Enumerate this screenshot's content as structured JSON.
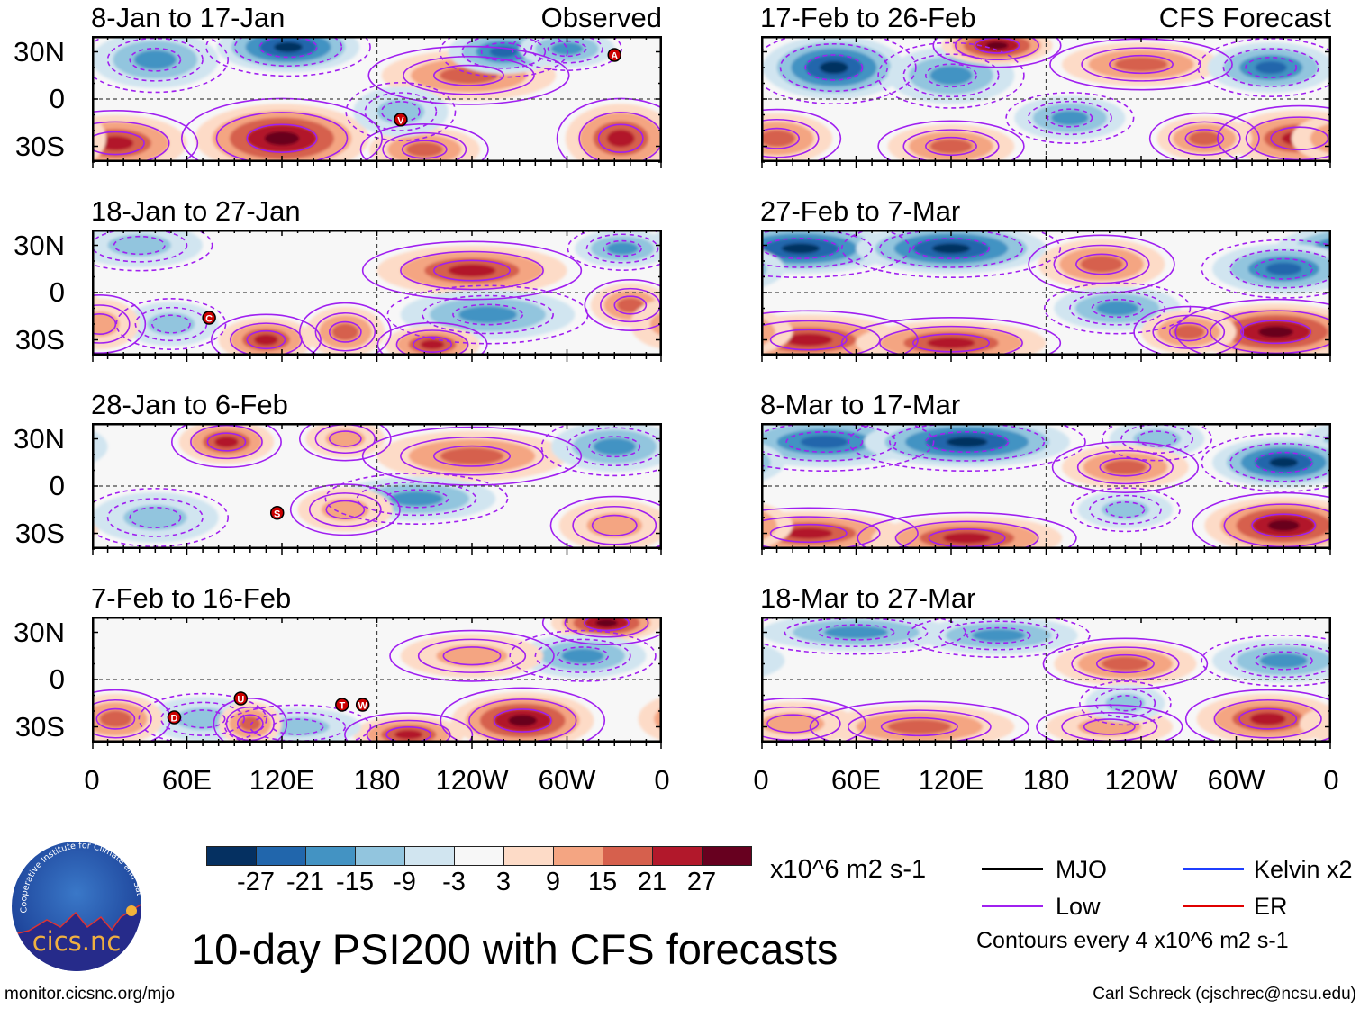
{
  "figure_title": "10-day PSI200 with CFS forecasts",
  "column_labels": {
    "left": "Observed",
    "right": "CFS Forecast"
  },
  "lat_labels": [
    "30N",
    "0",
    "30S"
  ],
  "lon_labels": [
    "0",
    "60E",
    "120E",
    "180",
    "120W",
    "60W",
    "0"
  ],
  "colorbar": {
    "ticks": [
      "-27",
      "-21",
      "-15",
      "-9",
      "-3",
      "3",
      "9",
      "15",
      "21",
      "27"
    ],
    "colors": [
      "#053061",
      "#2166ac",
      "#4393c3",
      "#92c5de",
      "#d1e5f0",
      "#f7f7f7",
      "#fddbc7",
      "#f4a582",
      "#d6604d",
      "#b2182b",
      "#67001f"
    ],
    "units": "x10^6 m2 s-1"
  },
  "legend": {
    "items": [
      {
        "label": "MJO",
        "color": "#000000"
      },
      {
        "label": "Kelvin x2",
        "color": "#1f3fff"
      },
      {
        "label": "Low",
        "color": "#a020f0"
      },
      {
        "label": "ER",
        "color": "#e00000"
      }
    ],
    "note": "Contours every 4 x10^6 m2 s-1"
  },
  "footer": {
    "left": "monitor.cicsnc.org/mjo",
    "right": "Carl Schreck (cjschrec@ncsu.edu)"
  },
  "logo": {
    "ring_text": "Cooperative Institute for Climate and Satellites",
    "name": "cics.nc"
  },
  "chart_data": {
    "type": "heatmap",
    "variable": "PSI200 anomaly",
    "units": "x10^6 m2 s-1",
    "lon_range": [
      0,
      360
    ],
    "lat_range": [
      -40,
      40
    ],
    "panels": [
      {
        "title": "8-Jan to 17-Jan",
        "column": "left",
        "anomalies": [
          {
            "lon": 124,
            "lat": 33,
            "value": -27,
            "w": 45,
            "h": 16
          },
          {
            "lon": 40,
            "lat": 25,
            "value": -15,
            "w": 40,
            "h": 18
          },
          {
            "lon": 120,
            "lat": -25,
            "value": 27,
            "w": 55,
            "h": 22
          },
          {
            "lon": 15,
            "lat": -28,
            "value": 21,
            "w": 45,
            "h": 18
          },
          {
            "lon": 238,
            "lat": 15,
            "value": 15,
            "w": 55,
            "h": 16
          },
          {
            "lon": 334,
            "lat": -25,
            "value": 21,
            "w": 35,
            "h": 22
          },
          {
            "lon": 260,
            "lat": 30,
            "value": -21,
            "w": 35,
            "h": 14
          },
          {
            "lon": 300,
            "lat": 32,
            "value": -15,
            "w": 30,
            "h": 12
          },
          {
            "lon": 210,
            "lat": -32,
            "value": 15,
            "w": 35,
            "h": 14
          },
          {
            "lon": 195,
            "lat": -8,
            "value": -9,
            "w": 30,
            "h": 16
          }
        ],
        "storms": [
          {
            "letter": "V",
            "lon": 195,
            "lat": -13
          },
          {
            "letter": "A",
            "lon": 330,
            "lat": 28
          }
        ]
      },
      {
        "title": "18-Jan to 27-Jan",
        "column": "left",
        "anomalies": [
          {
            "lon": 240,
            "lat": 14,
            "value": 21,
            "w": 60,
            "h": 16
          },
          {
            "lon": 250,
            "lat": -14,
            "value": -15,
            "w": 55,
            "h": 16
          },
          {
            "lon": 30,
            "lat": 30,
            "value": -9,
            "w": 40,
            "h": 14
          },
          {
            "lon": 110,
            "lat": -30,
            "value": 21,
            "w": 30,
            "h": 14
          },
          {
            "lon": 160,
            "lat": -25,
            "value": 15,
            "w": 25,
            "h": 16
          },
          {
            "lon": 215,
            "lat": -33,
            "value": 21,
            "w": 30,
            "h": 12
          },
          {
            "lon": 340,
            "lat": -8,
            "value": 15,
            "w": 25,
            "h": 14
          },
          {
            "lon": 50,
            "lat": -20,
            "value": -9,
            "w": 30,
            "h": 14
          },
          {
            "lon": 335,
            "lat": 28,
            "value": -15,
            "w": 30,
            "h": 12
          },
          {
            "lon": 5,
            "lat": -20,
            "value": 9,
            "w": 25,
            "h": 16
          }
        ],
        "storms": [
          {
            "letter": "C",
            "lon": 74,
            "lat": -16
          }
        ]
      },
      {
        "title": "28-Jan to 6-Feb",
        "column": "left",
        "anomalies": [
          {
            "lon": 85,
            "lat": 28,
            "value": 21,
            "w": 30,
            "h": 14
          },
          {
            "lon": 240,
            "lat": 19,
            "value": 15,
            "w": 60,
            "h": 16
          },
          {
            "lon": 205,
            "lat": -8,
            "value": -15,
            "w": 50,
            "h": 14
          },
          {
            "lon": 330,
            "lat": 25,
            "value": -15,
            "w": 40,
            "h": 16
          },
          {
            "lon": 330,
            "lat": -25,
            "value": 9,
            "w": 35,
            "h": 16
          },
          {
            "lon": 160,
            "lat": -15,
            "value": 9,
            "w": 30,
            "h": 14
          },
          {
            "lon": 40,
            "lat": -20,
            "value": -9,
            "w": 40,
            "h": 16
          },
          {
            "lon": 160,
            "lat": 30,
            "value": 9,
            "w": 25,
            "h": 12
          }
        ],
        "storms": [
          {
            "letter": "S",
            "lon": 117,
            "lat": -17
          }
        ]
      },
      {
        "title": "7-Feb to 16-Feb",
        "column": "left",
        "anomalies": [
          {
            "lon": 325,
            "lat": 36,
            "value": 27,
            "w": 35,
            "h": 12
          },
          {
            "lon": 310,
            "lat": 15,
            "value": -15,
            "w": 40,
            "h": 14
          },
          {
            "lon": 240,
            "lat": 15,
            "value": 9,
            "w": 45,
            "h": 14
          },
          {
            "lon": 272,
            "lat": -26,
            "value": 27,
            "w": 45,
            "h": 18
          },
          {
            "lon": 200,
            "lat": -35,
            "value": 21,
            "w": 35,
            "h": 12
          },
          {
            "lon": 70,
            "lat": -25,
            "value": -9,
            "w": 35,
            "h": 14
          },
          {
            "lon": 130,
            "lat": -30,
            "value": -9,
            "w": 40,
            "h": 12
          },
          {
            "lon": 15,
            "lat": -25,
            "value": 15,
            "w": 30,
            "h": 16
          },
          {
            "lon": 100,
            "lat": -28,
            "value": 15,
            "w": 20,
            "h": 14
          }
        ],
        "storms": [
          {
            "letter": "D",
            "lon": 52,
            "lat": -24
          },
          {
            "letter": "U",
            "lon": 94,
            "lat": -12
          },
          {
            "letter": "T",
            "lon": 158,
            "lat": -16
          },
          {
            "letter": "W",
            "lon": 171,
            "lat": -16
          }
        ]
      },
      {
        "title": "17-Feb to 26-Feb",
        "column": "right",
        "anomalies": [
          {
            "lon": 46,
            "lat": 20,
            "value": -27,
            "w": 45,
            "h": 20
          },
          {
            "lon": 120,
            "lat": 15,
            "value": -15,
            "w": 40,
            "h": 18
          },
          {
            "lon": 149,
            "lat": 34,
            "value": 27,
            "w": 35,
            "h": 12
          },
          {
            "lon": 240,
            "lat": 22,
            "value": 15,
            "w": 50,
            "h": 14
          },
          {
            "lon": 322,
            "lat": 20,
            "value": -21,
            "w": 40,
            "h": 16
          },
          {
            "lon": 195,
            "lat": -12,
            "value": -15,
            "w": 35,
            "h": 14
          },
          {
            "lon": 340,
            "lat": -25,
            "value": 21,
            "w": 45,
            "h": 18
          },
          {
            "lon": 10,
            "lat": -25,
            "value": 15,
            "w": 35,
            "h": 16
          },
          {
            "lon": 120,
            "lat": -30,
            "value": 15,
            "w": 40,
            "h": 14
          },
          {
            "lon": 280,
            "lat": -25,
            "value": 15,
            "w": 30,
            "h": 14
          }
        ],
        "storms": []
      },
      {
        "title": "27-Feb to 7-Mar",
        "column": "right",
        "anomalies": [
          {
            "lon": 25,
            "lat": 28,
            "value": -27,
            "w": 60,
            "h": 16
          },
          {
            "lon": 120,
            "lat": 28,
            "value": -27,
            "w": 60,
            "h": 16
          },
          {
            "lon": 330,
            "lat": 15,
            "value": -21,
            "w": 45,
            "h": 16
          },
          {
            "lon": 215,
            "lat": 18,
            "value": 15,
            "w": 40,
            "h": 16
          },
          {
            "lon": 225,
            "lat": -10,
            "value": -15,
            "w": 40,
            "h": 14
          },
          {
            "lon": 30,
            "lat": -30,
            "value": 21,
            "w": 60,
            "h": 16
          },
          {
            "lon": 120,
            "lat": -32,
            "value": 21,
            "w": 60,
            "h": 14
          },
          {
            "lon": 325,
            "lat": -25,
            "value": 27,
            "w": 55,
            "h": 18
          },
          {
            "lon": 270,
            "lat": -25,
            "value": 15,
            "w": 30,
            "h": 14
          }
        ],
        "storms": []
      },
      {
        "title": "8-Mar to 17-Mar",
        "column": "right",
        "anomalies": [
          {
            "lon": 40,
            "lat": 28,
            "value": -21,
            "w": 60,
            "h": 16
          },
          {
            "lon": 130,
            "lat": 28,
            "value": -27,
            "w": 65,
            "h": 16
          },
          {
            "lon": 330,
            "lat": 15,
            "value": -27,
            "w": 45,
            "h": 16
          },
          {
            "lon": 250,
            "lat": 30,
            "value": -9,
            "w": 30,
            "h": 12
          },
          {
            "lon": 230,
            "lat": 12,
            "value": 15,
            "w": 40,
            "h": 14
          },
          {
            "lon": 30,
            "lat": -30,
            "value": 21,
            "w": 60,
            "h": 14
          },
          {
            "lon": 130,
            "lat": -33,
            "value": 21,
            "w": 60,
            "h": 14
          },
          {
            "lon": 330,
            "lat": -25,
            "value": 27,
            "w": 50,
            "h": 18
          },
          {
            "lon": 230,
            "lat": -15,
            "value": -9,
            "w": 30,
            "h": 12
          }
        ],
        "storms": []
      },
      {
        "title": "18-Mar to 27-Mar",
        "column": "right",
        "anomalies": [
          {
            "lon": 60,
            "lat": 30,
            "value": -15,
            "w": 60,
            "h": 12
          },
          {
            "lon": 150,
            "lat": 28,
            "value": -15,
            "w": 50,
            "h": 12
          },
          {
            "lon": 330,
            "lat": 12,
            "value": -15,
            "w": 45,
            "h": 14
          },
          {
            "lon": 230,
            "lat": 10,
            "value": 15,
            "w": 45,
            "h": 14
          },
          {
            "lon": 100,
            "lat": -30,
            "value": 15,
            "w": 60,
            "h": 14
          },
          {
            "lon": 220,
            "lat": -30,
            "value": 9,
            "w": 40,
            "h": 12
          },
          {
            "lon": 320,
            "lat": -25,
            "value": 21,
            "w": 45,
            "h": 16
          },
          {
            "lon": 230,
            "lat": -15,
            "value": -9,
            "w": 25,
            "h": 12
          },
          {
            "lon": 20,
            "lat": -28,
            "value": 9,
            "w": 40,
            "h": 14
          }
        ],
        "storms": []
      }
    ]
  }
}
